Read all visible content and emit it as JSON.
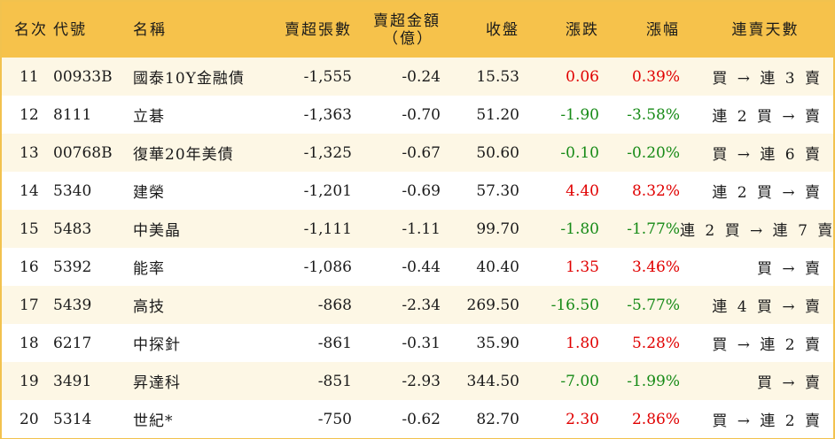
{
  "header": {
    "rank": "名次",
    "code": "代號",
    "name": "名稱",
    "sell_lots": "賣超張數",
    "sell_amount_line1": "賣超金額",
    "sell_amount_line2": "（億）",
    "close": "收盤",
    "change": "漲跌",
    "change_pct": "漲幅",
    "streak": "連賣天數"
  },
  "colors": {
    "header_bg": "#f6c24b",
    "odd_row_bg": "#fdf7e5",
    "up": "#e00000",
    "down": "#168a16"
  },
  "rows": [
    {
      "rank": "11",
      "code": "00933B",
      "name": "國泰10Y金融債",
      "sell_lots": "-1,555",
      "sell_amount": "-0.24",
      "close": "15.53",
      "change": "0.06",
      "change_pct": "0.39%",
      "direction": "up",
      "streak": "買 → 連 3 賣"
    },
    {
      "rank": "12",
      "code": "8111",
      "name": "立碁",
      "sell_lots": "-1,363",
      "sell_amount": "-0.70",
      "close": "51.20",
      "change": "-1.90",
      "change_pct": "-3.58%",
      "direction": "down",
      "streak": "連 2 買 → 賣"
    },
    {
      "rank": "13",
      "code": "00768B",
      "name": "復華20年美債",
      "sell_lots": "-1,325",
      "sell_amount": "-0.67",
      "close": "50.60",
      "change": "-0.10",
      "change_pct": "-0.20%",
      "direction": "down",
      "streak": "買 → 連 6 賣"
    },
    {
      "rank": "14",
      "code": "5340",
      "name": "建榮",
      "sell_lots": "-1,201",
      "sell_amount": "-0.69",
      "close": "57.30",
      "change": "4.40",
      "change_pct": "8.32%",
      "direction": "up",
      "streak": "連 2 買 → 賣"
    },
    {
      "rank": "15",
      "code": "5483",
      "name": "中美晶",
      "sell_lots": "-1,111",
      "sell_amount": "-1.11",
      "close": "99.70",
      "change": "-1.80",
      "change_pct": "-1.77%",
      "direction": "down",
      "streak": "連 2 買 → 連 7 賣"
    },
    {
      "rank": "16",
      "code": "5392",
      "name": "能率",
      "sell_lots": "-1,086",
      "sell_amount": "-0.44",
      "close": "40.40",
      "change": "1.35",
      "change_pct": "3.46%",
      "direction": "up",
      "streak": "買 → 賣"
    },
    {
      "rank": "17",
      "code": "5439",
      "name": "高技",
      "sell_lots": "-868",
      "sell_amount": "-2.34",
      "close": "269.50",
      "change": "-16.50",
      "change_pct": "-5.77%",
      "direction": "down",
      "streak": "連 4 買 → 賣"
    },
    {
      "rank": "18",
      "code": "6217",
      "name": "中探針",
      "sell_lots": "-861",
      "sell_amount": "-0.31",
      "close": "35.90",
      "change": "1.80",
      "change_pct": "5.28%",
      "direction": "up",
      "streak": "買 → 連 2 賣"
    },
    {
      "rank": "19",
      "code": "3491",
      "name": "昇達科",
      "sell_lots": "-851",
      "sell_amount": "-2.93",
      "close": "344.50",
      "change": "-7.00",
      "change_pct": "-1.99%",
      "direction": "down",
      "streak": "買 → 賣"
    },
    {
      "rank": "20",
      "code": "5314",
      "name": "世紀*",
      "sell_lots": "-750",
      "sell_amount": "-0.62",
      "close": "82.70",
      "change": "2.30",
      "change_pct": "2.86%",
      "direction": "up",
      "streak": "買 → 連 2 賣"
    }
  ]
}
